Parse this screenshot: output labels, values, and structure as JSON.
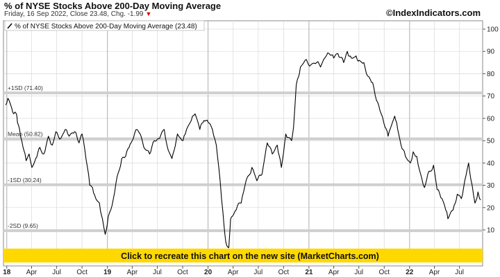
{
  "header": {
    "title": "% of NYSE Stocks Above 200-Day Moving Average",
    "subtitle": "Friday, 16 Sep 2022, Close 23.48, Chg. -1.99",
    "change_arrow": "down-arrow-icon",
    "brand": "©IndexIndicators.com"
  },
  "legend": {
    "label": "% of NYSE Stocks Above 200-Day Moving Average (23.48)"
  },
  "banner": {
    "label": "Click to recreate this chart on the new site (MarketCharts.com)",
    "color": "#ffd800"
  },
  "colors": {
    "line": "#000000",
    "band": "#cfcfcf",
    "grid": "#dddddd",
    "background": "#ffffff"
  },
  "chart_data": {
    "type": "line",
    "title": "% of NYSE Stocks Above 200-Day Moving Average",
    "ylim": [
      0,
      105
    ],
    "y_ticks": [
      10,
      20,
      30,
      40,
      50,
      60,
      70,
      80,
      90,
      100
    ],
    "x_tick_labels": [
      "18",
      "Apr",
      "Jul",
      "Oct",
      "19",
      "Apr",
      "Jul",
      "Oct",
      "20",
      "Apr",
      "Jul",
      "Oct",
      "21",
      "Apr",
      "Jul",
      "Oct",
      "22",
      "Apr",
      "Jul"
    ],
    "bands": [
      {
        "label": "+1SD (71.40)",
        "value": 71.4
      },
      {
        "label": "Mean (50.82)",
        "value": 50.82
      },
      {
        "label": "-1SD (30.24)",
        "value": 30.24
      },
      {
        "label": "-2SD (9.65)",
        "value": 9.65
      }
    ],
    "series": [
      {
        "name": "% of NYSE Stocks Above 200-Day Moving Average",
        "x": [
          "2017-12-28",
          "2018-01-05",
          "2018-01-15",
          "2018-01-26",
          "2018-02-05",
          "2018-02-09",
          "2018-02-20",
          "2018-03-01",
          "2018-03-12",
          "2018-03-23",
          "2018-04-02",
          "2018-04-16",
          "2018-05-01",
          "2018-05-15",
          "2018-06-01",
          "2018-06-15",
          "2018-06-28",
          "2018-07-16",
          "2018-08-01",
          "2018-08-15",
          "2018-09-04",
          "2018-09-20",
          "2018-10-01",
          "2018-10-11",
          "2018-10-29",
          "2018-11-08",
          "2018-11-20",
          "2018-12-03",
          "2018-12-14",
          "2018-12-24",
          "2019-01-04",
          "2019-01-18",
          "2019-02-01",
          "2019-02-22",
          "2019-03-08",
          "2019-03-21",
          "2019-04-05",
          "2019-04-18",
          "2019-05-03",
          "2019-05-13",
          "2019-06-03",
          "2019-06-20",
          "2019-07-05",
          "2019-07-26",
          "2019-08-05",
          "2019-08-23",
          "2019-09-12",
          "2019-10-02",
          "2019-10-15",
          "2019-11-01",
          "2019-11-15",
          "2019-12-02",
          "2019-12-17",
          "2020-01-02",
          "2020-01-17",
          "2020-01-31",
          "2020-02-14",
          "2020-02-24",
          "2020-03-02",
          "2020-03-09",
          "2020-03-16",
          "2020-03-23",
          "2020-04-03",
          "2020-04-17",
          "2020-04-30",
          "2020-05-14",
          "2020-06-08",
          "2020-06-26",
          "2020-07-15",
          "2020-08-03",
          "2020-08-21",
          "2020-09-08",
          "2020-09-23",
          "2020-10-09",
          "2020-10-30",
          "2020-11-06",
          "2020-11-16",
          "2020-12-01",
          "2020-12-18",
          "2021-01-08",
          "2021-01-29",
          "2021-02-12",
          "2021-03-05",
          "2021-03-15",
          "2021-04-01",
          "2021-04-16",
          "2021-05-07",
          "2021-05-20",
          "2021-06-04",
          "2021-06-21",
          "2021-07-02",
          "2021-07-19",
          "2021-08-02",
          "2021-08-20",
          "2021-09-03",
          "2021-09-20",
          "2021-10-04",
          "2021-10-15",
          "2021-11-08",
          "2021-11-19",
          "2021-12-01",
          "2021-12-17",
          "2022-01-04",
          "2022-01-14",
          "2022-01-27",
          "2022-02-10",
          "2022-02-24",
          "2022-03-08",
          "2022-03-29",
          "2022-04-11",
          "2022-04-29",
          "2022-05-12",
          "2022-05-20",
          "2022-06-08",
          "2022-06-16",
          "2022-06-23",
          "2022-07-08",
          "2022-07-20",
          "2022-08-03",
          "2022-08-16",
          "2022-08-26",
          "2022-09-06",
          "2022-09-12",
          "2022-09-16"
        ],
        "values": [
          66,
          69,
          66,
          62,
          62,
          58,
          52,
          47,
          41,
          44,
          38,
          42,
          47,
          44,
          52,
          48,
          54,
          51,
          55,
          52,
          54,
          49,
          53,
          46,
          30,
          29,
          24,
          22,
          15,
          8,
          16,
          21,
          31,
          42,
          43,
          47,
          51,
          55,
          52,
          47,
          44,
          50,
          51,
          55,
          48,
          42,
          53,
          50,
          55,
          59,
          62,
          55,
          59,
          58,
          55,
          48,
          32,
          18,
          8,
          3,
          2,
          15,
          17,
          21,
          22,
          30,
          38,
          32,
          35,
          49,
          44,
          48,
          38,
          53,
          50,
          56,
          75,
          83,
          86,
          84,
          85,
          83,
          88,
          89,
          87,
          89,
          85,
          90,
          87,
          88,
          86,
          85,
          79,
          76,
          68,
          62,
          56,
          52,
          61,
          55,
          48,
          43,
          40,
          45,
          43,
          35,
          29,
          35,
          39,
          28,
          24,
          19,
          15,
          19,
          22,
          26,
          24,
          32,
          40,
          30,
          22,
          27,
          24,
          23.48
        ]
      }
    ]
  }
}
